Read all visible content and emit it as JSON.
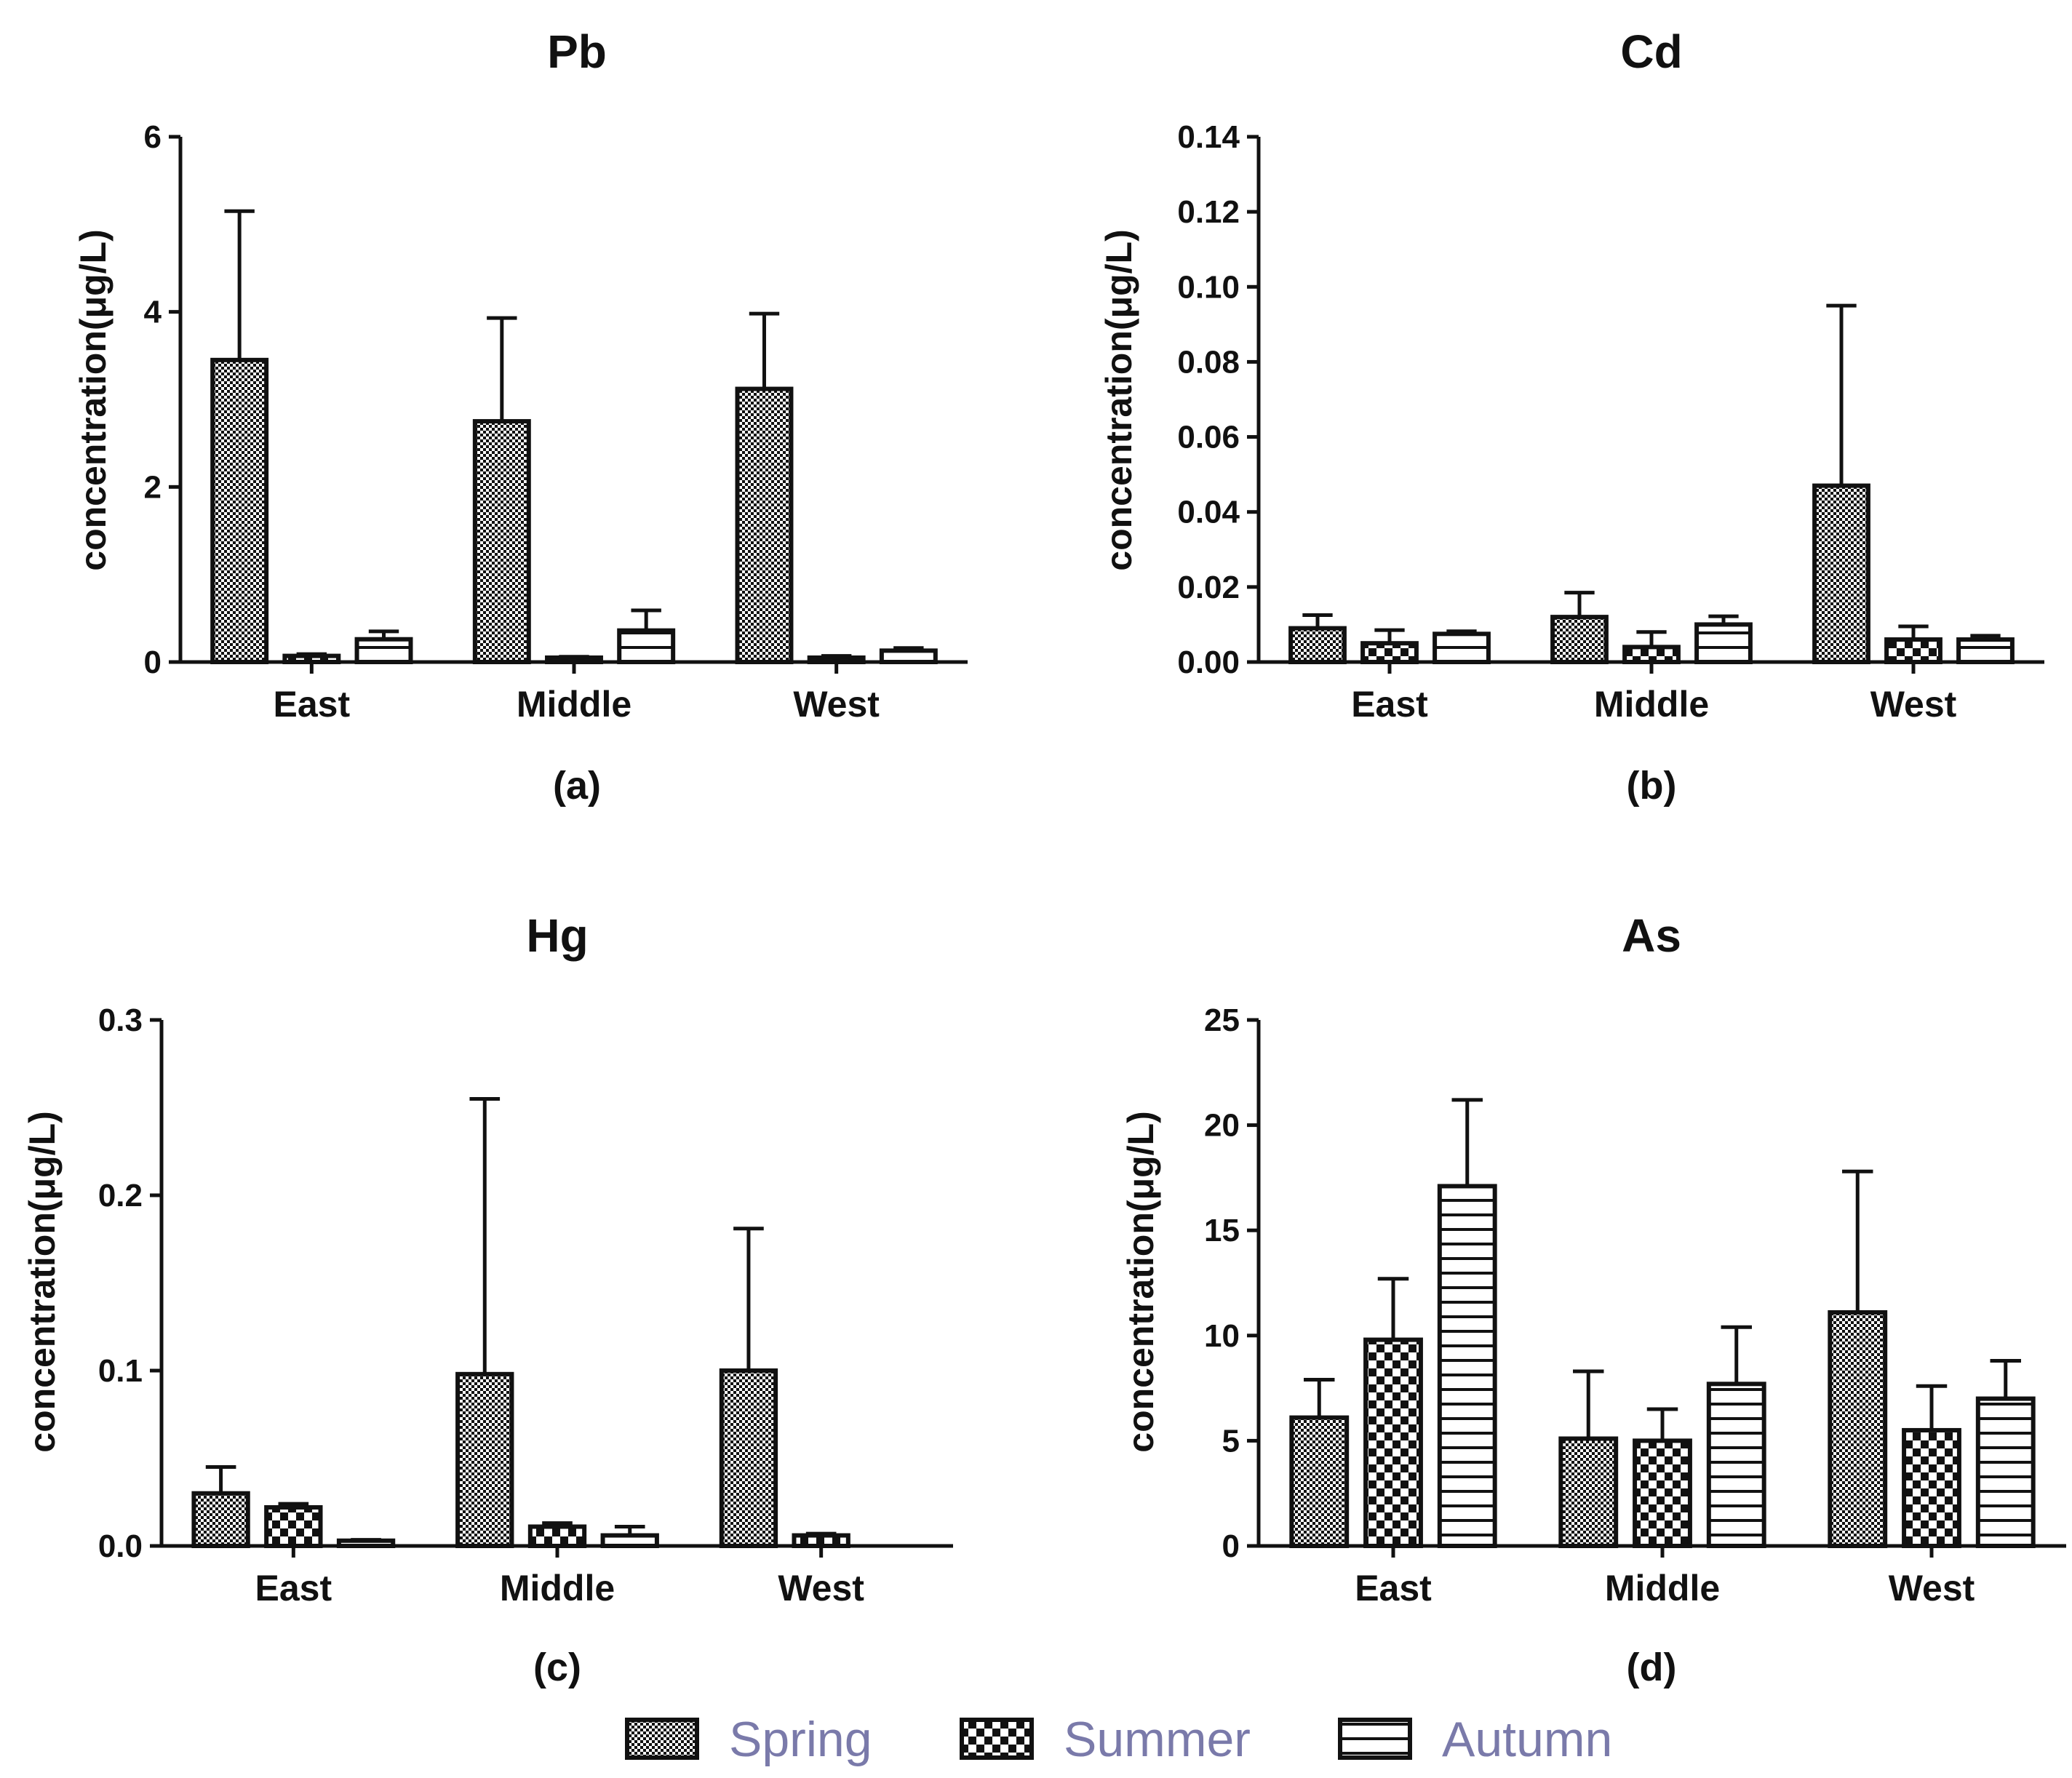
{
  "chart_data": [
    {
      "type": "bar",
      "title": "Pb",
      "panel_label": "(a)",
      "xlabel": "",
      "ylabel": "concentration(μg/L)",
      "ylim": [
        0,
        6
      ],
      "yticks": [
        "0",
        "2",
        "4",
        "6"
      ],
      "categories": [
        "East",
        "Middle",
        "West"
      ],
      "series": [
        {
          "name": "Spring",
          "values": [
            3.45,
            2.75,
            3.12
          ],
          "errors": [
            1.7,
            1.18,
            0.86
          ]
        },
        {
          "name": "Summer",
          "values": [
            0.07,
            0.05,
            0.05
          ],
          "errors": [
            0.02,
            0.01,
            0.02
          ]
        },
        {
          "name": "Autumn",
          "values": [
            0.26,
            0.36,
            0.13
          ],
          "errors": [
            0.09,
            0.23,
            0.03
          ]
        }
      ]
    },
    {
      "type": "bar",
      "title": "Cd",
      "panel_label": "(b)",
      "xlabel": "",
      "ylabel": "concentration(μg/L)",
      "ylim": [
        0,
        0.14
      ],
      "yticks": [
        "0.00",
        "0.02",
        "0.04",
        "0.06",
        "0.08",
        "0.10",
        "0.12",
        "0.14"
      ],
      "categories": [
        "East",
        "Middle",
        "West"
      ],
      "series": [
        {
          "name": "Spring",
          "values": [
            0.009,
            0.012,
            0.047
          ],
          "errors": [
            0.0035,
            0.0065,
            0.048
          ]
        },
        {
          "name": "Summer",
          "values": [
            0.005,
            0.004,
            0.006
          ],
          "errors": [
            0.0035,
            0.004,
            0.0035
          ]
        },
        {
          "name": "Autumn",
          "values": [
            0.0075,
            0.01,
            0.006
          ],
          "errors": [
            0.0007,
            0.0022,
            0.001
          ]
        }
      ]
    },
    {
      "type": "bar",
      "title": "Hg",
      "panel_label": "(c)",
      "xlabel": "",
      "ylabel": "concentration(μg/L)",
      "ylim": [
        0,
        0.3
      ],
      "yticks": [
        "0.0",
        "0.1",
        "0.2",
        "0.3"
      ],
      "categories": [
        "East",
        "Middle",
        "West"
      ],
      "series": [
        {
          "name": "Spring",
          "values": [
            0.03,
            0.098,
            0.1
          ],
          "errors": [
            0.015,
            0.157,
            0.081
          ]
        },
        {
          "name": "Summer",
          "values": [
            0.022,
            0.011,
            0.006
          ],
          "errors": [
            0.002,
            0.002,
            0.001
          ]
        },
        {
          "name": "Autumn",
          "values": [
            0.003,
            0.006,
            0.0
          ],
          "errors": [
            0.0005,
            0.005,
            0.0
          ]
        }
      ]
    },
    {
      "type": "bar",
      "title": "As",
      "panel_label": "(d)",
      "xlabel": "",
      "ylabel": "concentration(μg/L)",
      "ylim": [
        0,
        25
      ],
      "yticks": [
        "0",
        "5",
        "10",
        "15",
        "20",
        "25"
      ],
      "categories": [
        "East",
        "Middle",
        "West"
      ],
      "series": [
        {
          "name": "Spring",
          "values": [
            6.1,
            5.1,
            11.1
          ],
          "errors": [
            1.8,
            3.2,
            6.7
          ]
        },
        {
          "name": "Summer",
          "values": [
            9.8,
            5.0,
            5.5
          ],
          "errors": [
            2.9,
            1.5,
            2.1
          ]
        },
        {
          "name": "Autumn",
          "values": [
            17.1,
            7.7,
            7.0
          ],
          "errors": [
            4.1,
            2.7,
            1.8
          ]
        }
      ]
    }
  ],
  "legend": {
    "placement": "bottom-center",
    "items": [
      {
        "label": "Spring",
        "pattern": "fine-checker"
      },
      {
        "label": "Summer",
        "pattern": "coarse-checker"
      },
      {
        "label": "Autumn",
        "pattern": "horizontal-lines"
      }
    ]
  },
  "colors": {
    "ink": "#111111",
    "legend_text": "#7a7aaa",
    "background": "#ffffff"
  }
}
